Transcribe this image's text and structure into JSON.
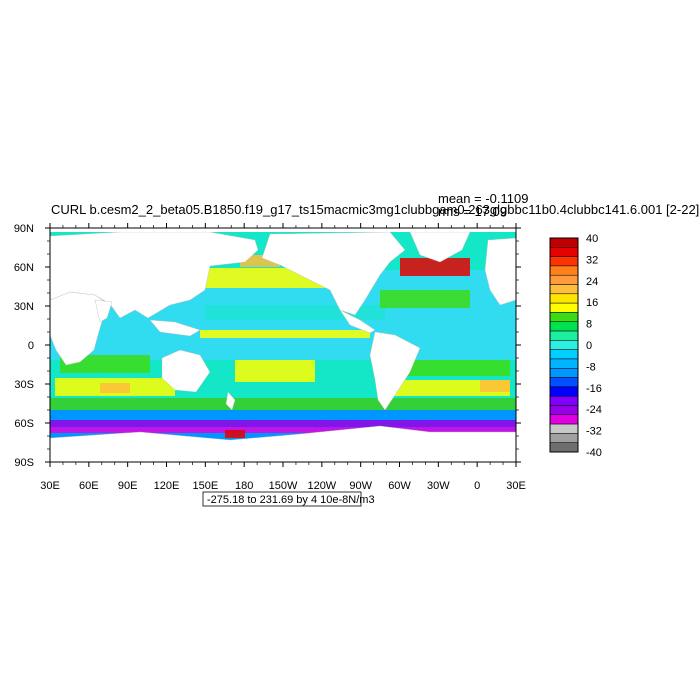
{
  "header": {
    "title": "CURL b.cesm2_2_beta05.B1850.f19_g17_ts15macmic3mg1clubbgam0.263glgbbc11b0.4clubbc141.6.001 [2-22]",
    "mean": "mean = -0.1109",
    "rms": "rms = 17.09"
  },
  "axes": {
    "x_ticks": [
      "30E",
      "60E",
      "90E",
      "120E",
      "150E",
      "180",
      "150W",
      "120W",
      "90W",
      "60W",
      "30W",
      "0",
      "30E"
    ],
    "y_ticks": [
      "90N",
      "60N",
      "30N",
      "0",
      "30S",
      "60S",
      "90S"
    ]
  },
  "colorbar": {
    "labels": [
      "40",
      "32",
      "24",
      "16",
      "8",
      "0",
      "-8",
      "-16",
      "-24",
      "-32",
      "-40"
    ],
    "colors": [
      "#c00000",
      "#e60000",
      "#ff3300",
      "#ff7f1a",
      "#ff9b3c",
      "#ffbd3c",
      "#ffe500",
      "#ffff00",
      "#3cdc14",
      "#00e150",
      "#1cf09c",
      "#2cf0e0",
      "#00d0ff",
      "#00b4ff",
      "#0096ff",
      "#0050ff",
      "#0000ff",
      "#7f00ff",
      "#9600e6",
      "#e100e1",
      "#c8c8c8",
      "#a0a0a0",
      "#6e6e6e"
    ]
  },
  "footer": {
    "range_label": "-275.18 to 231.69 by 4 10e-8N/m3"
  },
  "palette": {
    "land": "#ffffff",
    "subpolar": "#14e6c8",
    "tropics": "#32dcf0",
    "deep_blue": "#0096ff",
    "yellow": "#ffff00",
    "green": "#3cdc14",
    "orange": "#ffbd3c",
    "red": "#e60000",
    "purple": "#9600e6",
    "magenta": "#e100e1"
  }
}
